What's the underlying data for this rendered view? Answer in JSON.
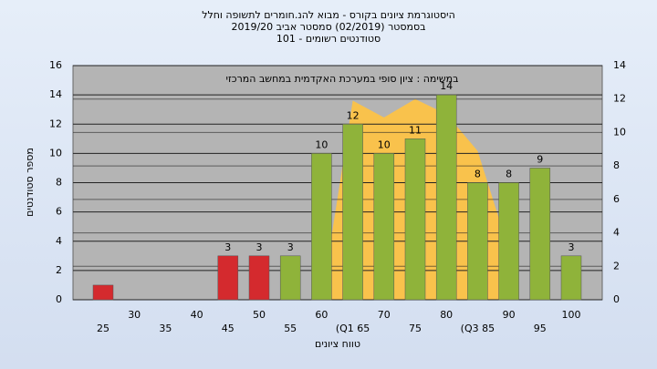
{
  "chart_data": {
    "type": "bar",
    "title": [
      "היסטוגרמת ציונים בקורס - מבוא להנ.חומרים לתשופה וחלל",
      "בסמסטר  (02/2019)  סמסטר אביב 2019/20",
      "סטודנטים רשומים - 101"
    ],
    "annotation": "במשימה : ציון סופי במערכת האקדמית במחשב המרכזי",
    "xlabel": "טווח ציונים",
    "ylabel": "מספר סטודנטים",
    "categories": [
      "25",
      "30",
      "35",
      "40",
      "45",
      "50",
      "55",
      "60",
      "(Q1 65",
      "70",
      "75",
      "80",
      "(Q3 85",
      "90",
      "95",
      "100"
    ],
    "values": [
      1,
      0,
      0,
      0,
      3,
      3,
      3,
      10,
      12,
      10,
      11,
      14,
      8,
      8,
      9,
      3
    ],
    "value_labels": [
      null,
      null,
      null,
      null,
      "3",
      "3",
      "3",
      "10",
      "12",
      "10",
      "11",
      "14",
      "8",
      "8",
      "9",
      "3"
    ],
    "colors": [
      "#d42a2e",
      "#8fb33a",
      "#8fb33a",
      "#8fb33a",
      "#d42a2e",
      "#d42a2e",
      "#8fb33a",
      "#8fb33a",
      "#8fb33a",
      "#8fb33a",
      "#8fb33a",
      "#8fb33a",
      "#8fb33a",
      "#8fb33a",
      "#8fb33a",
      "#8fb33a"
    ],
    "area": {
      "axis": "y2",
      "color": "#f9c24c",
      "values": [
        null,
        null,
        null,
        null,
        null,
        null,
        null,
        0,
        11.9,
        10.9,
        12,
        11.1,
        8.9,
        3,
        null,
        null
      ]
    },
    "ylim": [
      0,
      16
    ],
    "yticks": [
      0,
      2,
      4,
      6,
      8,
      10,
      12,
      14,
      16
    ],
    "y2lim": [
      0,
      14
    ],
    "y2ticks": [
      0,
      2,
      4,
      6,
      8,
      10,
      12,
      14
    ],
    "grid": true
  }
}
